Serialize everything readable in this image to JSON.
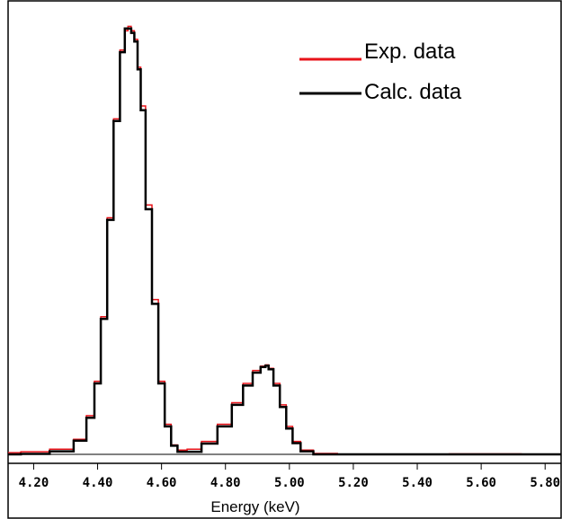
{
  "chart_data": {
    "type": "line",
    "title": "",
    "xlabel": "Energy (keV)",
    "ylabel": "",
    "xlim": [
      4.12,
      5.85
    ],
    "ylim": [
      0,
      1.0
    ],
    "x_ticks": [
      "4.20",
      "4.40",
      "4.60",
      "4.80",
      "5.00",
      "5.20",
      "5.40",
      "5.60",
      "5.80"
    ],
    "x_tick_values": [
      4.2,
      4.4,
      4.6,
      4.8,
      5.0,
      5.2,
      5.4,
      5.6,
      5.8
    ],
    "legend_position": "top-right",
    "grid": false,
    "series": [
      {
        "name": "Exp. data",
        "color": "#e8131a",
        "x": [
          4.12,
          4.2,
          4.3,
          4.35,
          4.38,
          4.4,
          4.42,
          4.44,
          4.46,
          4.48,
          4.49,
          4.5,
          4.51,
          4.52,
          4.53,
          4.54,
          4.56,
          4.58,
          4.6,
          4.62,
          4.64,
          4.66,
          4.7,
          4.75,
          4.8,
          4.84,
          4.87,
          4.9,
          4.92,
          4.93,
          4.94,
          4.96,
          4.98,
          5.0,
          5.02,
          5.05,
          5.1,
          5.2,
          5.4,
          5.6,
          5.85
        ],
        "y": [
          0.004,
          0.006,
          0.012,
          0.035,
          0.09,
          0.17,
          0.32,
          0.55,
          0.78,
          0.94,
          0.985,
          0.995,
          0.985,
          0.965,
          0.9,
          0.81,
          0.58,
          0.36,
          0.17,
          0.07,
          0.022,
          0.01,
          0.012,
          0.03,
          0.07,
          0.12,
          0.165,
          0.195,
          0.205,
          0.208,
          0.2,
          0.165,
          0.115,
          0.065,
          0.03,
          0.01,
          0.002,
          0.0,
          0.0,
          0.001,
          0.0
        ]
      },
      {
        "name": "Calc. data",
        "color": "#000000",
        "x": [
          4.12,
          4.2,
          4.3,
          4.35,
          4.38,
          4.4,
          4.42,
          4.44,
          4.46,
          4.48,
          4.49,
          4.5,
          4.51,
          4.52,
          4.53,
          4.54,
          4.56,
          4.58,
          4.6,
          4.62,
          4.64,
          4.66,
          4.7,
          4.75,
          4.8,
          4.84,
          4.87,
          4.9,
          4.92,
          4.93,
          4.94,
          4.96,
          4.98,
          5.0,
          5.02,
          5.05,
          5.1,
          5.2,
          5.4,
          5.6,
          5.85
        ],
        "y": [
          0.0,
          0.001,
          0.007,
          0.032,
          0.085,
          0.165,
          0.315,
          0.545,
          0.775,
          0.935,
          0.99,
          0.99,
          0.98,
          0.96,
          0.895,
          0.8,
          0.57,
          0.35,
          0.165,
          0.065,
          0.02,
          0.006,
          0.006,
          0.025,
          0.065,
          0.115,
          0.16,
          0.19,
          0.203,
          0.206,
          0.198,
          0.16,
          0.11,
          0.06,
          0.026,
          0.007,
          0.0,
          0.0,
          0.0,
          0.0,
          0.0
        ]
      }
    ]
  }
}
